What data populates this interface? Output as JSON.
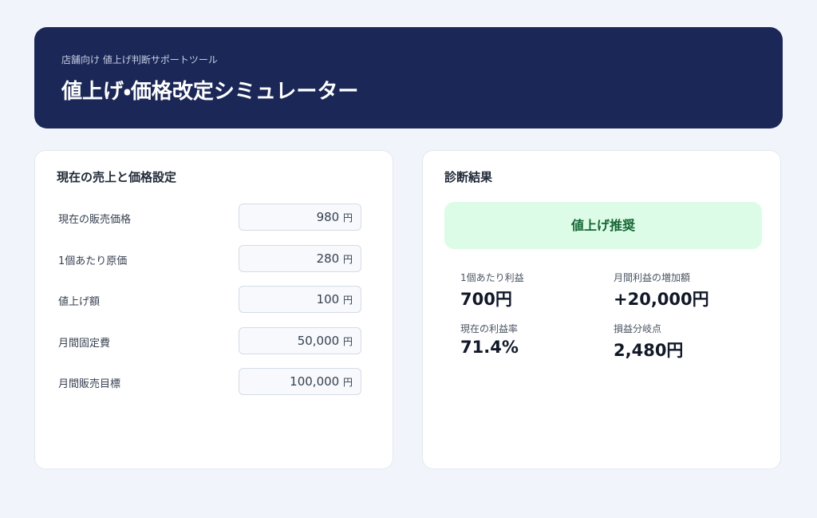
{
  "header": {
    "subtitle": "店舗向け 値上げ判断サポートツール",
    "title": "値上げ・価格改定シミュレーター"
  },
  "inputs": {
    "title": "現在の売上と価格設定",
    "rows": [
      {
        "label": "現在の販売価格",
        "value": "980",
        "unit": "円"
      },
      {
        "label": "1個あたり原価",
        "value": "280",
        "unit": "円"
      },
      {
        "label": "値上げ額",
        "value": "100",
        "unit": "円"
      },
      {
        "label": "月間固定費",
        "value": "50,000",
        "unit": "円"
      },
      {
        "label": "月間販売目標",
        "value": "100,000",
        "unit": "円"
      }
    ]
  },
  "results": {
    "title": "診断結果",
    "verdict": "値上げ推奨",
    "metrics": [
      {
        "label": "1個あたり利益",
        "value": "700円"
      },
      {
        "label": "月間利益の増加額",
        "value": "+20,000円"
      },
      {
        "label": "現在の利益率",
        "value": "71.4%"
      },
      {
        "label": "損益分岐点",
        "value": "2,480円"
      }
    ]
  }
}
